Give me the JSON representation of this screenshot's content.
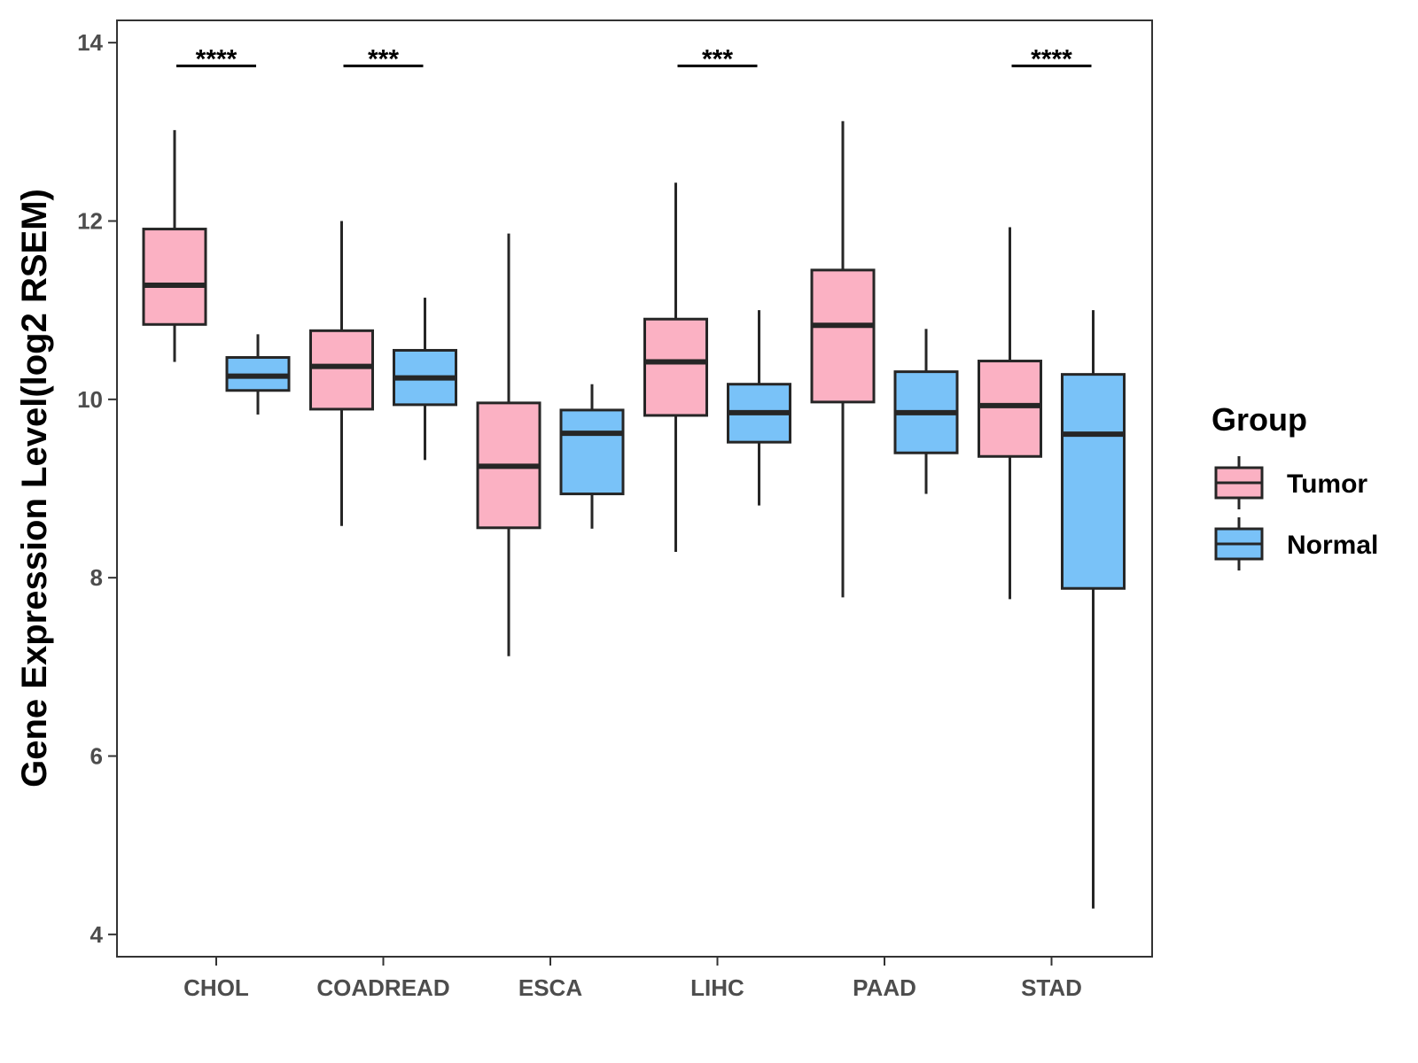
{
  "chart_data": {
    "type": "boxplot",
    "title": "",
    "xlabel": "",
    "ylabel": "Gene Expression Level(log2 RSEM)",
    "ylim": [
      3.75,
      14.25
    ],
    "yticks": [
      4,
      6,
      8,
      10,
      12,
      14
    ],
    "categories": [
      "CHOL",
      "COADREAD",
      "ESCA",
      "LIHC",
      "PAAD",
      "STAD"
    ],
    "legend": {
      "title": "Group",
      "position": "right"
    },
    "colors": {
      "Tumor": "#FBB1C3",
      "Normal": "#79C2F8",
      "outline": "#262626"
    },
    "series": [
      {
        "name": "Tumor",
        "boxes": [
          {
            "category": "CHOL",
            "min": 10.42,
            "q1": 10.84,
            "median": 11.28,
            "q3": 11.91,
            "max": 13.02
          },
          {
            "category": "COADREAD",
            "min": 8.58,
            "q1": 9.89,
            "median": 10.37,
            "q3": 10.77,
            "max": 12.0
          },
          {
            "category": "ESCA",
            "min": 7.12,
            "q1": 8.56,
            "median": 9.25,
            "q3": 9.96,
            "max": 11.86
          },
          {
            "category": "LIHC",
            "min": 8.29,
            "q1": 9.82,
            "median": 10.42,
            "q3": 10.9,
            "max": 12.43
          },
          {
            "category": "PAAD",
            "min": 7.78,
            "q1": 9.97,
            "median": 10.83,
            "q3": 11.45,
            "max": 13.12
          },
          {
            "category": "STAD",
            "min": 7.76,
            "q1": 9.36,
            "median": 9.93,
            "q3": 10.43,
            "max": 11.93
          }
        ]
      },
      {
        "name": "Normal",
        "boxes": [
          {
            "category": "CHOL",
            "min": 9.83,
            "q1": 10.1,
            "median": 10.26,
            "q3": 10.47,
            "max": 10.73
          },
          {
            "category": "COADREAD",
            "min": 9.32,
            "q1": 9.94,
            "median": 10.24,
            "q3": 10.55,
            "max": 11.14
          },
          {
            "category": "ESCA",
            "min": 8.55,
            "q1": 8.94,
            "median": 9.62,
            "q3": 9.88,
            "max": 10.17
          },
          {
            "category": "LIHC",
            "min": 8.81,
            "q1": 9.52,
            "median": 9.85,
            "q3": 10.17,
            "max": 11.0
          },
          {
            "category": "PAAD",
            "min": 8.94,
            "q1": 9.4,
            "median": 9.85,
            "q3": 10.31,
            "max": 10.79
          },
          {
            "category": "STAD",
            "min": 4.29,
            "q1": 7.88,
            "median": 9.61,
            "q3": 10.28,
            "max": 11.0
          }
        ]
      }
    ],
    "significance": [
      {
        "category": "CHOL",
        "label": "****"
      },
      {
        "category": "COADREAD",
        "label": "***"
      },
      {
        "category": "ESCA",
        "label": ""
      },
      {
        "category": "LIHC",
        "label": "***"
      },
      {
        "category": "PAAD",
        "label": ""
      },
      {
        "category": "STAD",
        "label": "****"
      }
    ]
  }
}
